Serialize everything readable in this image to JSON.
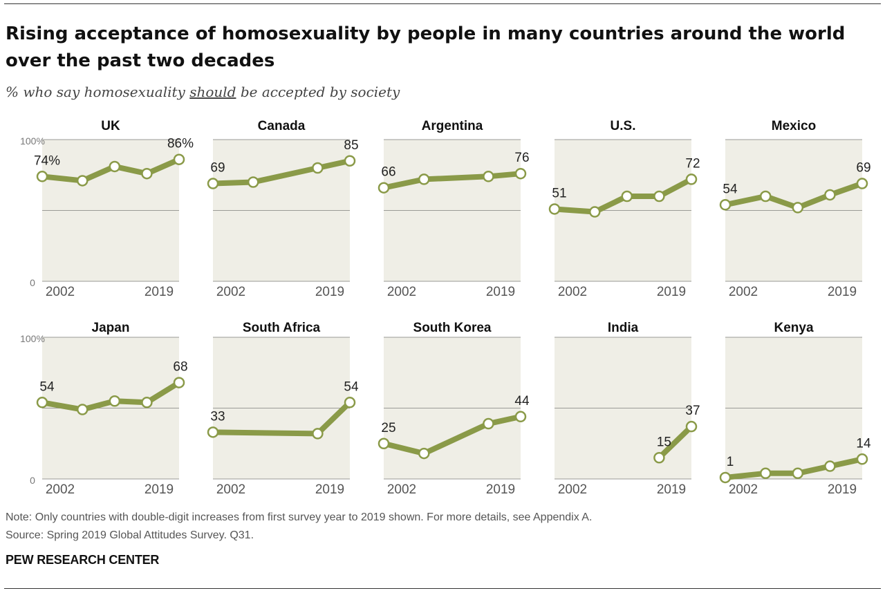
{
  "title": "Rising acceptance of homosexuality by people in many countries around the world over the past two decades",
  "subtitle": {
    "before": "% who say homosexuality ",
    "underlined": "should",
    "after": " be accepted by society"
  },
  "note": "Note: Only countries with double-digit increases from first survey year to 2019 shown. For more details, see Appendix A.",
  "source": "Source: Spring 2019 Global Attitudes Survey. Q31.",
  "brand": "PEW RESEARCH CENTER",
  "colors": {
    "line": "#8a9a48",
    "panel": "#efeee6",
    "grid": "#9a9a96",
    "point_fill": "#ffffff"
  },
  "chart_data": {
    "type": "line",
    "layout": "small-multiples",
    "ylim": [
      0,
      100
    ],
    "y_tick_labels": {
      "top": "100%",
      "bottom": "0"
    },
    "gridlines": [
      50,
      100
    ],
    "x_tick_labels": [
      "2002",
      "2019"
    ],
    "xlim": [
      2002,
      2019
    ],
    "panels": [
      {
        "name": "UK",
        "x": [
          2002,
          2007,
          2011,
          2015,
          2019
        ],
        "values": [
          74,
          71,
          81,
          76,
          86
        ],
        "first_label": "74%",
        "last_label": "86%"
      },
      {
        "name": "Canada",
        "x": [
          2002,
          2007,
          2015,
          2019
        ],
        "values": [
          69,
          70,
          80,
          85
        ],
        "first_label": "69",
        "last_label": "85"
      },
      {
        "name": "Argentina",
        "x": [
          2002,
          2007,
          2015,
          2019
        ],
        "values": [
          66,
          72,
          74,
          76
        ],
        "first_label": "66",
        "last_label": "76"
      },
      {
        "name": "U.S.",
        "x": [
          2002,
          2007,
          2011,
          2015,
          2019
        ],
        "values": [
          51,
          49,
          60,
          60,
          72
        ],
        "first_label": "51",
        "last_label": "72"
      },
      {
        "name": "Mexico",
        "x": [
          2002,
          2007,
          2011,
          2015,
          2019
        ],
        "values": [
          54,
          60,
          52,
          61,
          69
        ],
        "first_label": "54",
        "last_label": "69"
      },
      {
        "name": "Japan",
        "x": [
          2002,
          2007,
          2011,
          2015,
          2019
        ],
        "values": [
          54,
          49,
          55,
          54,
          68
        ],
        "first_label": "54",
        "last_label": "68"
      },
      {
        "name": "South Africa",
        "x": [
          2002,
          2015,
          2019
        ],
        "values": [
          33,
          32,
          54
        ],
        "first_label": "33",
        "last_label": "54"
      },
      {
        "name": "South Korea",
        "x": [
          2002,
          2007,
          2015,
          2019
        ],
        "values": [
          25,
          18,
          39,
          44
        ],
        "first_label": "25",
        "last_label": "44"
      },
      {
        "name": "India",
        "x": [
          2015,
          2019
        ],
        "values": [
          15,
          37
        ],
        "first_label": "15",
        "last_label": "37"
      },
      {
        "name": "Kenya",
        "x": [
          2002,
          2007,
          2011,
          2015,
          2019
        ],
        "values": [
          1,
          4,
          4,
          9,
          14
        ],
        "first_label": "1",
        "last_label": "14"
      }
    ]
  }
}
